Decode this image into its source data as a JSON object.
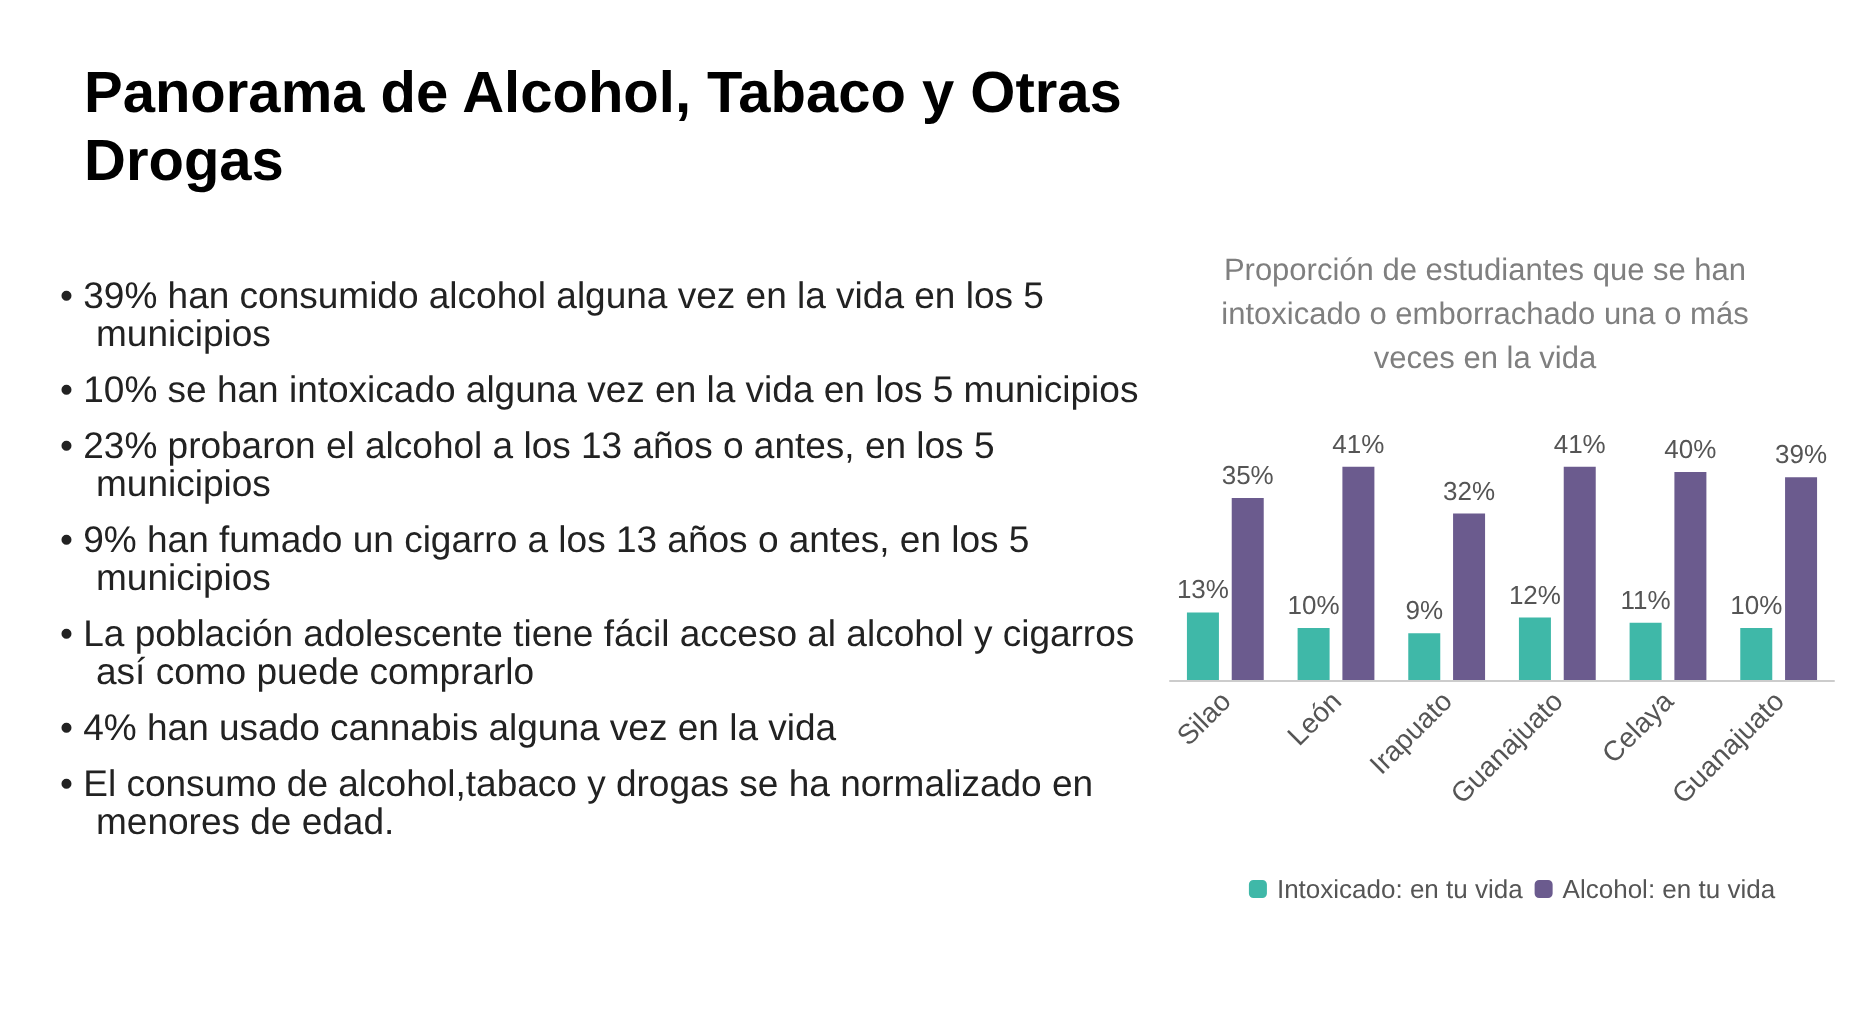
{
  "chart_data": {
    "type": "bar",
    "title": "Panorama de Alcohol, Tabaco y Otras Drogas",
    "subtitle": "Proporción de estudiantes que se han intoxicado o emborrachado una o más veces en la vida",
    "annotations": [
      "• 39% han consumido alcohol alguna vez en la vida en los 5 municipios",
      "• 10% se han intoxicado alguna vez en la vida en los 5 municipios",
      "• 23% probaron el alcohol a los 13 años o antes, en los 5 municipios",
      "• 9% han fumado un cigarro a los 13 años o antes, en los 5 municipios",
      "• La población adolescente tiene fácil acceso al alcohol y cigarros así como puede comprarlo",
      "• 4% han usado cannabis alguna vez en la vida",
      "• El consumo de alcohol,tabaco y drogas se ha normalizado en menores de edad."
    ],
    "categories": [
      "Silao",
      "León",
      "Irapuato",
      "Guanajuato",
      "Celaya",
      "Guanajuato"
    ],
    "series": [
      {
        "name": "Intoxicado: en tu vida",
        "color": "#3fb8a8",
        "values": [
          13,
          10,
          9,
          12,
          11,
          10
        ],
        "value_labels": [
          "13%",
          "10%",
          "9%",
          "12%",
          "11%",
          "10%"
        ]
      },
      {
        "name": "Alcohol: en tu vida",
        "color": "#6b5b8e",
        "values": [
          35,
          41,
          32,
          41,
          40,
          39
        ],
        "value_labels": [
          "35%",
          "41%",
          "32%",
          "41%",
          "40%",
          "39%"
        ]
      }
    ],
    "legend": "bottom"
  }
}
